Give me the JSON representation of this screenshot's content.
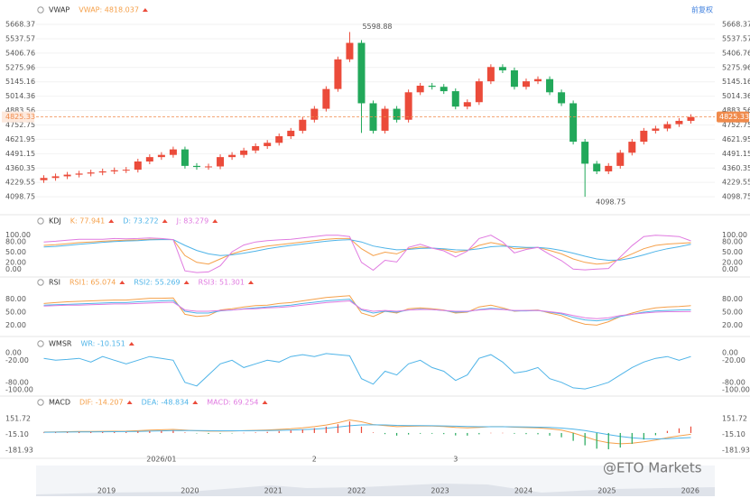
{
  "ui": {
    "adjust_button": "前复权",
    "watermark": "@ETO Markets",
    "years": [
      "2019",
      "2020",
      "2021",
      "2022",
      "2023",
      "2024",
      "2025",
      "2026"
    ]
  },
  "chart_data": [
    {
      "type": "candlestick",
      "title": "VWAP",
      "indicator": "VWAP: 4818.037",
      "up_color": "#eb4b3a",
      "down_color": "#22a85a",
      "grid": true,
      "open": [
        4250,
        4270,
        4285,
        4300,
        4310,
        4320,
        4330,
        4340,
        4345,
        4420,
        4460,
        4480,
        4530,
        4380,
        4370,
        4375,
        4460,
        4480,
        4520,
        4560,
        4590,
        4650,
        4700,
        4800,
        4900,
        5080,
        5350,
        5500,
        4950,
        4700,
        4900,
        4800,
        5050,
        5110,
        5100,
        5060,
        4920,
        4960,
        5150,
        5280,
        5250,
        5100,
        5150,
        5170,
        5050,
        4950,
        4600,
        4400,
        4330,
        4380,
        4500,
        4600,
        4700,
        4720,
        4760,
        4790
      ],
      "high": [
        4295,
        4310,
        4325,
        4335,
        4345,
        4355,
        4365,
        4370,
        4445,
        4485,
        4505,
        4555,
        4555,
        4405,
        4400,
        4485,
        4505,
        4545,
        4585,
        4615,
        4675,
        4725,
        4825,
        4925,
        5105,
        5375,
        5598.88,
        5525,
        4975,
        4925,
        4925,
        5075,
        5135,
        5135,
        5125,
        5085,
        4985,
        5175,
        5305,
        5305,
        5275,
        5175,
        5195,
        5195,
        5075,
        4975,
        4625,
        4425,
        4405,
        4525,
        4625,
        4725,
        4745,
        4785,
        4815,
        4850
      ],
      "low": [
        4225,
        4245,
        4260,
        4275,
        4285,
        4295,
        4305,
        4315,
        4320,
        4395,
        4435,
        4455,
        4355,
        4345,
        4345,
        4350,
        4435,
        4455,
        4495,
        4535,
        4565,
        4625,
        4675,
        4775,
        4875,
        5055,
        5325,
        4680,
        4675,
        4675,
        4775,
        4775,
        5025,
        5075,
        5035,
        4895,
        4895,
        4935,
        5125,
        5225,
        5075,
        5075,
        5125,
        5025,
        4925,
        4575,
        4098.75,
        4305,
        4305,
        4355,
        4475,
        4575,
        4675,
        4695,
        4735,
        4765
      ],
      "close": [
        4270,
        4285,
        4300,
        4310,
        4320,
        4330,
        4340,
        4345,
        4420,
        4460,
        4480,
        4530,
        4380,
        4370,
        4375,
        4460,
        4480,
        4520,
        4560,
        4590,
        4650,
        4700,
        4800,
        4900,
        5080,
        5350,
        5500,
        4950,
        4700,
        4900,
        4800,
        5050,
        5110,
        5100,
        5060,
        4920,
        4960,
        5150,
        5280,
        5250,
        5100,
        5150,
        5170,
        5050,
        4950,
        4600,
        4400,
        4330,
        4380,
        4500,
        4600,
        4700,
        4720,
        4760,
        4790,
        4825.33
      ],
      "ylim": [
        3960,
        5726
      ],
      "yticks": [
        5668.37,
        5537.57,
        5406.76,
        5275.96,
        5145.16,
        5014.36,
        4883.56,
        4752.75,
        4621.95,
        4491.15,
        4360.35,
        4229.55,
        4098.75
      ],
      "last_price": 4825.33,
      "last_price_color": "#f08a4b"
    },
    {
      "type": "line",
      "title": "KDJ",
      "ylim": [
        -15,
        115
      ],
      "yticks": [
        {
          "value": 100,
          "label": "100.00"
        },
        {
          "value": 80,
          "label": "80.00"
        },
        {
          "value": 50,
          "label": "50.00"
        },
        {
          "value": 20,
          "label": "20.00"
        },
        {
          "value": 0,
          "label": "0.00"
        }
      ],
      "series": [
        {
          "name": "K: 77.941",
          "color": "#f5a04a",
          "values": [
            70,
            72,
            75,
            78,
            80,
            82,
            84,
            85,
            86,
            88,
            88,
            87,
            40,
            20,
            15,
            30,
            45,
            55,
            62,
            68,
            72,
            76,
            80,
            84,
            88,
            90,
            90,
            60,
            40,
            50,
            45,
            60,
            65,
            62,
            58,
            50,
            55,
            70,
            78,
            72,
            60,
            62,
            64,
            55,
            45,
            30,
            20,
            15,
            18,
            30,
            45,
            60,
            70,
            74,
            76,
            77.941
          ]
        },
        {
          "name": "D: 73.272",
          "color": "#4fb4e8",
          "values": [
            65,
            67,
            70,
            73,
            76,
            79,
            81,
            83,
            84,
            86,
            87,
            87,
            70,
            55,
            45,
            40,
            42,
            47,
            53,
            60,
            65,
            70,
            74,
            78,
            82,
            85,
            87,
            80,
            68,
            62,
            57,
            58,
            61,
            62,
            60,
            57,
            56,
            60,
            66,
            68,
            66,
            64,
            64,
            61,
            55,
            47,
            38,
            30,
            26,
            27,
            33,
            42,
            52,
            60,
            66,
            73.272
          ]
        },
        {
          "name": "J: 83.279",
          "color": "#e07ae0",
          "values": [
            80,
            82,
            85,
            88,
            88,
            88,
            90,
            89,
            90,
            92,
            90,
            87,
            -5,
            -10,
            -8,
            10,
            51,
            71,
            80,
            84,
            86,
            88,
            92,
            96,
            100,
            100,
            96,
            20,
            -3,
            26,
            21,
            64,
            73,
            62,
            54,
            36,
            53,
            90,
            100,
            80,
            48,
            58,
            64,
            43,
            25,
            0,
            -2,
            0,
            2,
            36,
            69,
            96,
            100,
            98,
            96,
            83.279
          ]
        }
      ]
    },
    {
      "type": "line",
      "title": "RSI",
      "ylim": [
        0,
        100
      ],
      "yticks": [
        {
          "value": 80,
          "label": "80.00"
        },
        {
          "value": 50,
          "label": "50.00"
        },
        {
          "value": 20,
          "label": "20.00"
        }
      ],
      "series": [
        {
          "name": "RSI1: 65.074",
          "color": "#f5a04a",
          "values": [
            70,
            72,
            74,
            75,
            76,
            77,
            78,
            78,
            80,
            82,
            82,
            83,
            45,
            40,
            42,
            55,
            58,
            62,
            65,
            66,
            70,
            72,
            76,
            80,
            84,
            86,
            88,
            48,
            40,
            52,
            48,
            58,
            60,
            58,
            55,
            48,
            50,
            62,
            66,
            60,
            52,
            54,
            55,
            48,
            42,
            30,
            22,
            20,
            28,
            40,
            48,
            55,
            60,
            62,
            63,
            65.074
          ]
        },
        {
          "name": "RSI2: 55.269",
          "color": "#4fb4e8",
          "values": [
            66,
            67,
            68,
            69,
            70,
            71,
            72,
            72,
            74,
            75,
            76,
            77,
            52,
            48,
            48,
            53,
            55,
            58,
            60,
            62,
            64,
            66,
            70,
            73,
            76,
            78,
            80,
            55,
            48,
            52,
            50,
            55,
            57,
            56,
            54,
            50,
            51,
            56,
            59,
            57,
            53,
            53,
            54,
            50,
            46,
            38,
            32,
            30,
            33,
            40,
            45,
            50,
            53,
            54,
            55,
            55.269
          ]
        },
        {
          "name": "RSI3: 51.301",
          "color": "#e07ae0",
          "values": [
            64,
            65,
            66,
            66,
            67,
            68,
            69,
            69,
            70,
            71,
            72,
            73,
            55,
            52,
            52,
            54,
            55,
            57,
            58,
            60,
            61,
            63,
            66,
            69,
            72,
            74,
            76,
            57,
            52,
            54,
            52,
            55,
            56,
            56,
            54,
            52,
            52,
            55,
            57,
            56,
            54,
            54,
            54,
            51,
            48,
            42,
            37,
            35,
            37,
            42,
            45,
            48,
            50,
            51,
            51,
            51.301
          ]
        }
      ]
    },
    {
      "type": "line",
      "title": "WMSR",
      "ylim": [
        -110,
        10
      ],
      "yticks": [
        {
          "value": 0,
          "label": "0.00"
        },
        {
          "value": -20,
          "label": "-20.00"
        },
        {
          "value": -80,
          "label": "-80.00"
        },
        {
          "value": -100,
          "label": "-100.00"
        }
      ],
      "series": [
        {
          "name": "WR: -10.151",
          "color": "#4fb4e8",
          "values": [
            -15,
            -20,
            -18,
            -15,
            -25,
            -10,
            -20,
            -30,
            -20,
            -10,
            -15,
            -20,
            -80,
            -90,
            -60,
            -30,
            -20,
            -40,
            -30,
            -20,
            -25,
            -10,
            -5,
            -10,
            -2,
            -5,
            -8,
            -70,
            -85,
            -50,
            -60,
            -30,
            -20,
            -40,
            -50,
            -75,
            -60,
            -15,
            -5,
            -25,
            -55,
            -50,
            -40,
            -70,
            -80,
            -95,
            -98,
            -90,
            -80,
            -60,
            -40,
            -25,
            -15,
            -10,
            -20,
            -10.151
          ]
        }
      ]
    },
    {
      "type": "line",
      "title": "MACD",
      "ylim": [
        -242,
        212
      ],
      "yticks": [
        151.72,
        {
          "value": -15.1,
          "label": "-15.10"
        },
        -181.93
      ],
      "categories": [
        null,
        null,
        null,
        null,
        null,
        null,
        null,
        null,
        null,
        null,
        "2026/01",
        null,
        null,
        null,
        null,
        null,
        null,
        null,
        null,
        null,
        null,
        null,
        null,
        "2",
        null,
        null,
        null,
        null,
        null,
        null,
        null,
        null,
        null,
        null,
        null,
        "3",
        null,
        null,
        null,
        null,
        null,
        null,
        null,
        null,
        null,
        null,
        null,
        null,
        null,
        null,
        null,
        null,
        null,
        null,
        null,
        null
      ],
      "series": [
        {
          "name": "DIF: -14.207",
          "color": "#f5a04a",
          "values": [
            10,
            12,
            14,
            16,
            17,
            18,
            19,
            20,
            25,
            30,
            34,
            38,
            30,
            24,
            20,
            20,
            22,
            25,
            28,
            32,
            38,
            45,
            55,
            68,
            85,
            110,
            140,
            120,
            90,
            80,
            68,
            72,
            75,
            74,
            70,
            60,
            55,
            60,
            68,
            68,
            62,
            58,
            55,
            45,
            30,
            0,
            -40,
            -80,
            -105,
            -115,
            -110,
            -95,
            -75,
            -50,
            -30,
            -14.207
          ]
        },
        {
          "name": "DEA: -48.834",
          "color": "#4fb4e8",
          "values": [
            8,
            9,
            10,
            11,
            12,
            13,
            14,
            15,
            17,
            20,
            23,
            26,
            27,
            26,
            25,
            24,
            24,
            24,
            25,
            26,
            28,
            31,
            36,
            42,
            51,
            63,
            78,
            86,
            87,
            86,
            82,
            80,
            79,
            78,
            76,
            73,
            69,
            67,
            67,
            67,
            66,
            64,
            62,
            59,
            53,
            42,
            26,
            4,
            -18,
            -37,
            -52,
            -60,
            -63,
            -61,
            -55,
            -48.834
          ]
        },
        {
          "name": "MACD: 69.254",
          "color": "#e07ae0",
          "style": "bar",
          "up_color": "#eb4b3a",
          "down_color": "#22a85a",
          "values": [
            4,
            6,
            8,
            10,
            10,
            10,
            10,
            10,
            16,
            20,
            22,
            24,
            6,
            -4,
            -10,
            -8,
            -4,
            2,
            6,
            12,
            20,
            28,
            38,
            52,
            68,
            94,
            124,
            68,
            6,
            -12,
            -28,
            -16,
            -8,
            -8,
            -12,
            -26,
            -28,
            -14,
            2,
            2,
            -8,
            -12,
            -14,
            -28,
            -46,
            -84,
            -132,
            -168,
            -174,
            -156,
            -116,
            -70,
            -24,
            22,
            50,
            69.254
          ]
        }
      ]
    }
  ]
}
